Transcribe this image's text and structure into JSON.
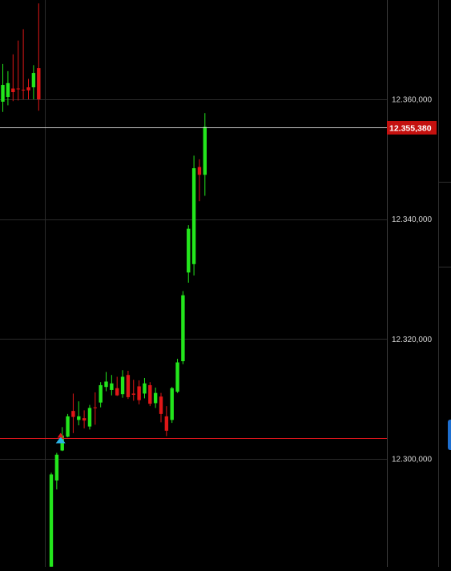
{
  "chart_data": {
    "type": "candlestick",
    "y_axis": {
      "range": [
        12282000,
        12376000
      ],
      "ticks": [
        12300000,
        12320000,
        12340000,
        12360000
      ],
      "tick_labels": [
        "12.300,000",
        "12.320,000",
        "12.340,000",
        "12.360,000"
      ]
    },
    "grid": true,
    "current_price": {
      "value": 12355380,
      "label": "12.355,380",
      "color": "#c4110f"
    },
    "horizontal_line": {
      "value": 12303500,
      "color": "#e0161c"
    },
    "colors": {
      "up": "#23e61c",
      "down": "#e01717",
      "background": "#000000",
      "grid": "#2b2b2b"
    },
    "candles": [
      {
        "i": 0,
        "o": 12359600,
        "c": 12362400,
        "h": 12365900,
        "l": 12357900
      },
      {
        "i": 1,
        "o": 12360400,
        "c": 12362700,
        "h": 12364700,
        "l": 12359000
      },
      {
        "i": 2,
        "o": 12361800,
        "c": 12361200,
        "h": 12367500,
        "l": 12359700
      },
      {
        "i": 3,
        "o": 12361800,
        "c": 12361700,
        "h": 12369800,
        "l": 12359800
      },
      {
        "i": 4,
        "o": 12361600,
        "c": 12361500,
        "h": 12371700,
        "l": 12360000
      },
      {
        "i": 5,
        "o": 12362000,
        "c": 12361500,
        "h": 12363400,
        "l": 12360000
      },
      {
        "i": 6,
        "o": 12362000,
        "c": 12364400,
        "h": 12365700,
        "l": 12360000
      },
      {
        "i": 7,
        "o": 12365200,
        "c": 12360000,
        "h": 12376000,
        "l": 12358100
      },
      {
        "i": 8,
        "o": 12282000,
        "c": 12297400,
        "h": 12297700,
        "l": 12282000
      },
      {
        "i": 9,
        "o": 12296400,
        "c": 12300700,
        "h": 12301000,
        "l": 12294900
      },
      {
        "i": 10,
        "o": 12301400,
        "c": 12303900,
        "h": 12305300,
        "l": 12301300
      },
      {
        "i": 11,
        "o": 12303700,
        "c": 12307100,
        "h": 12307500,
        "l": 12303600
      },
      {
        "i": 12,
        "o": 12308000,
        "c": 12307000,
        "h": 12310900,
        "l": 12304300
      },
      {
        "i": 13,
        "o": 12306500,
        "c": 12307100,
        "h": 12309600,
        "l": 12305600
      },
      {
        "i": 14,
        "o": 12306800,
        "c": 12306400,
        "h": 12308100,
        "l": 12305100
      },
      {
        "i": 15,
        "o": 12305400,
        "c": 12308500,
        "h": 12309000,
        "l": 12304900
      },
      {
        "i": 16,
        "o": 12308600,
        "c": 12308500,
        "h": 12311100,
        "l": 12305700
      },
      {
        "i": 17,
        "o": 12309400,
        "c": 12312300,
        "h": 12312800,
        "l": 12308600
      },
      {
        "i": 18,
        "o": 12312000,
        "c": 12312900,
        "h": 12314500,
        "l": 12311300
      },
      {
        "i": 19,
        "o": 12311500,
        "c": 12312600,
        "h": 12314000,
        "l": 12310600
      },
      {
        "i": 20,
        "o": 12311800,
        "c": 12310600,
        "h": 12313700,
        "l": 12310500
      },
      {
        "i": 21,
        "o": 12310800,
        "c": 12313700,
        "h": 12314800,
        "l": 12310200
      },
      {
        "i": 22,
        "o": 12314000,
        "c": 12310300,
        "h": 12314700,
        "l": 12310000
      },
      {
        "i": 23,
        "o": 12310900,
        "c": 12310700,
        "h": 12313200,
        "l": 12309700
      },
      {
        "i": 24,
        "o": 12312100,
        "c": 12309800,
        "h": 12313100,
        "l": 12309100
      },
      {
        "i": 25,
        "o": 12310900,
        "c": 12312600,
        "h": 12313500,
        "l": 12310100
      },
      {
        "i": 26,
        "o": 12312300,
        "c": 12309200,
        "h": 12312800,
        "l": 12308800
      },
      {
        "i": 27,
        "o": 12309300,
        "c": 12311000,
        "h": 12311900,
        "l": 12308500
      },
      {
        "i": 28,
        "o": 12310400,
        "c": 12307500,
        "h": 12311000,
        "l": 12306100
      },
      {
        "i": 29,
        "o": 12307100,
        "c": 12304700,
        "h": 12308800,
        "l": 12303800
      },
      {
        "i": 30,
        "o": 12306500,
        "c": 12311800,
        "h": 12312000,
        "l": 12306000
      },
      {
        "i": 31,
        "o": 12311200,
        "c": 12316100,
        "h": 12316700,
        "l": 12311000
      },
      {
        "i": 32,
        "o": 12316300,
        "c": 12327300,
        "h": 12328000,
        "l": 12315800
      },
      {
        "i": 33,
        "o": 12331100,
        "c": 12338400,
        "h": 12339000,
        "l": 12329400
      },
      {
        "i": 34,
        "o": 12332500,
        "c": 12348500,
        "h": 12350600,
        "l": 12330600
      },
      {
        "i": 35,
        "o": 12348700,
        "c": 12347400,
        "h": 12350000,
        "l": 12343000
      },
      {
        "i": 36,
        "o": 12347400,
        "c": 12355400,
        "h": 12357700,
        "l": 12343900
      }
    ]
  }
}
